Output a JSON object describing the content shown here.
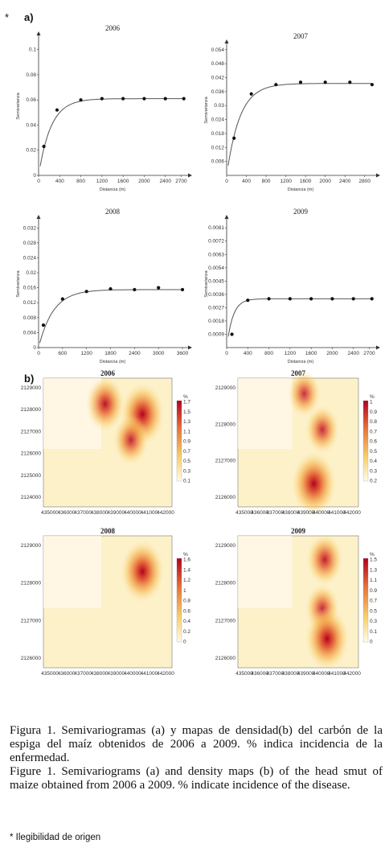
{
  "header": {
    "star": "*",
    "panel_a": "a)",
    "panel_b": "b)"
  },
  "chart_data": [
    {
      "type": "scatter",
      "title": "2006",
      "xlabel": "Distancia (m)",
      "ylabel": "Semivarianza",
      "xlim": [
        0,
        2800
      ],
      "ylim": [
        0,
        0.11
      ],
      "xticks": [
        0,
        400,
        800,
        1200,
        1600,
        2000,
        2400,
        2700
      ],
      "yticks": [
        "0",
        "0.02",
        "0.04",
        "0.06",
        "0.08",
        "0.1"
      ],
      "ytick_values": [
        0,
        0.02,
        0.04,
        0.06,
        0.08,
        0.1
      ],
      "x": [
        100,
        350,
        800,
        1200,
        1600,
        2000,
        2400,
        2750
      ],
      "y": [
        0.023,
        0.052,
        0.06,
        0.061,
        0.061,
        0.061,
        0.061,
        0.061
      ],
      "model": {
        "sill": 0.061,
        "range": 700
      }
    },
    {
      "type": "scatter",
      "title": "2007",
      "xlabel": "Distancia (m)",
      "ylabel": "Semivarianza",
      "xlim": [
        0,
        3000
      ],
      "ylim": [
        0,
        0.056
      ],
      "xticks": [
        0,
        400,
        800,
        1200,
        1600,
        2000,
        2400,
        2800
      ],
      "yticks": [
        "0.006",
        "0.012",
        "0.018",
        "0.024",
        "0.03",
        "0.036",
        "0.042",
        "0.048",
        "0.054"
      ],
      "ytick_values": [
        0.006,
        0.012,
        0.018,
        0.024,
        0.03,
        0.036,
        0.042,
        0.048,
        0.054
      ],
      "x": [
        150,
        500,
        1000,
        1500,
        2000,
        2500,
        2950
      ],
      "y": [
        0.016,
        0.035,
        0.039,
        0.04,
        0.04,
        0.04,
        0.039
      ],
      "model": {
        "sill": 0.0395,
        "range": 800
      }
    },
    {
      "type": "scatter",
      "title": "2008",
      "xlabel": "Distancia (m)",
      "ylabel": "Semivarianza",
      "xlim": [
        0,
        3700
      ],
      "ylim": [
        0,
        0.034
      ],
      "xticks": [
        0,
        600,
        1200,
        1800,
        2400,
        3000,
        3600
      ],
      "yticks": [
        "0",
        "0.004",
        "0.008",
        "0.012",
        "0.016",
        "0.02",
        "0.024",
        "0.028",
        "0.032"
      ],
      "ytick_values": [
        0,
        0.004,
        0.008,
        0.012,
        0.016,
        0.02,
        0.024,
        0.028,
        0.032
      ],
      "x": [
        120,
        600,
        1200,
        1800,
        2400,
        3000,
        3600
      ],
      "y": [
        0.006,
        0.013,
        0.015,
        0.0157,
        0.0155,
        0.016,
        0.0155
      ],
      "model": {
        "sill": 0.0155,
        "range": 1100
      }
    },
    {
      "type": "scatter",
      "title": "2009",
      "xlabel": "Distancia (m)",
      "ylabel": "Semivarianza",
      "xlim": [
        0,
        2800
      ],
      "ylim": [
        0,
        0.0086
      ],
      "xticks": [
        0,
        400,
        800,
        1200,
        1600,
        2000,
        2400,
        2700
      ],
      "yticks": [
        "0.0009",
        "0.0018",
        "0.0027",
        "0.0036",
        "0.0045",
        "0.0054",
        "0.0063",
        "0.0072",
        "0.0081"
      ],
      "ytick_values": [
        0.0009,
        0.0018,
        0.0027,
        0.0036,
        0.0045,
        0.0054,
        0.0063,
        0.0072,
        0.0081
      ],
      "x": [
        100,
        400,
        800,
        1200,
        1600,
        2000,
        2400,
        2750
      ],
      "y": [
        0.0009,
        0.0032,
        0.0033,
        0.0033,
        0.0033,
        0.0033,
        0.0033,
        0.0033
      ],
      "model": {
        "sill": 0.0033,
        "range": 350
      }
    },
    {
      "type": "heatmap",
      "title": "2006",
      "legend_unit": "%",
      "xticks": [
        "435000",
        "436000",
        "437000",
        "438000",
        "439000",
        "440000",
        "441000",
        "442000"
      ],
      "yticks": [
        "2129000",
        "2128000",
        "2127000",
        "2126000",
        "2125000",
        "2124000"
      ],
      "scale": [
        "1.7",
        "1.5",
        "1.3",
        "1.1",
        "0.9",
        "0.7",
        "0.5",
        "0.3",
        "0.1"
      ],
      "hotspots": [
        {
          "x": 0.48,
          "y": 0.2,
          "intensity": 0.75
        },
        {
          "x": 0.77,
          "y": 0.28,
          "intensity": 0.95
        },
        {
          "x": 0.68,
          "y": 0.48,
          "intensity": 0.6
        }
      ]
    },
    {
      "type": "heatmap",
      "title": "2007",
      "legend_unit": "%",
      "xticks": [
        "435000",
        "436000",
        "437000",
        "438000",
        "439000",
        "440000",
        "441000",
        "442000"
      ],
      "yticks": [
        "2129000",
        "2128000",
        "2127000",
        "2126000"
      ],
      "scale": [
        "1",
        "0.9",
        "0.8",
        "0.7",
        "0.6",
        "0.5",
        "0.4",
        "0.3",
        "0.2"
      ],
      "hotspots": [
        {
          "x": 0.55,
          "y": 0.12,
          "intensity": 0.5
        },
        {
          "x": 0.7,
          "y": 0.4,
          "intensity": 0.55
        },
        {
          "x": 0.63,
          "y": 0.82,
          "intensity": 1.0
        }
      ]
    },
    {
      "type": "heatmap",
      "title": "2008",
      "legend_unit": "%",
      "xticks": [
        "435000",
        "436000",
        "437000",
        "438000",
        "439000",
        "440000",
        "441000",
        "442000"
      ],
      "yticks": [
        "2129000",
        "2128000",
        "2127000",
        "2126000"
      ],
      "scale": [
        "1.6",
        "1.4",
        "1.2",
        "1",
        "0.8",
        "0.6",
        "0.4",
        "0.2",
        "0"
      ],
      "hotspots": [
        {
          "x": 0.77,
          "y": 0.27,
          "intensity": 0.95
        }
      ]
    },
    {
      "type": "heatmap",
      "title": "2009",
      "legend_unit": "%",
      "xticks": [
        "435000",
        "436000",
        "437000",
        "438000",
        "439000",
        "440000",
        "441000",
        "442000"
      ],
      "yticks": [
        "2129000",
        "2128000",
        "2127000",
        "2126000"
      ],
      "scale": [
        "1.5",
        "1.3",
        "1.1",
        "0.9",
        "0.7",
        "0.5",
        "0.3",
        "0.1",
        "0"
      ],
      "hotspots": [
        {
          "x": 0.72,
          "y": 0.18,
          "intensity": 0.65
        },
        {
          "x": 0.7,
          "y": 0.55,
          "intensity": 0.55
        },
        {
          "x": 0.74,
          "y": 0.78,
          "intensity": 0.95
        }
      ]
    }
  ],
  "caption": {
    "es": "Figura 1. Semivariogramas (a) y mapas de densidad(b) del carbón de la espiga del maíz obtenidos de 2006 a 2009. % indica incidencia de la enfermedad.",
    "en": "Figure 1. Semivariograms (a) and density maps (b) of the head smut of maize obtained from 2006 a 2009. % indicate incidence of the disease."
  },
  "footnote": "* Ilegibilidad de origen"
}
